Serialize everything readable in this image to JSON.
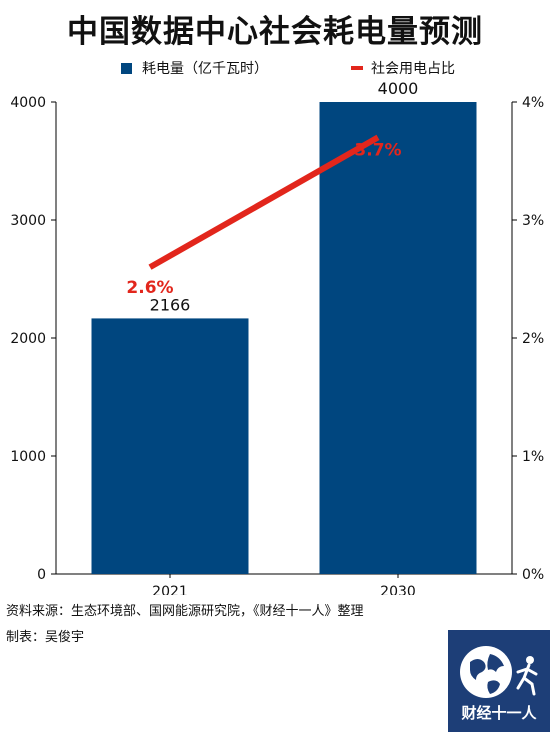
{
  "title": "中国数据中心社会耗电量预测",
  "source": "资料来源：生态环境部、国网能源研究院，《财经十一人》整理",
  "maker": "制表：吴俊宇",
  "logo_text": "财经十一人",
  "colors": {
    "bar": "#00467f",
    "line": "#e2261c",
    "line_label": "#e2261c"
  },
  "chart_data": {
    "type": "bar+line",
    "categories": [
      "2021",
      "2030"
    ],
    "series": [
      {
        "name": "耗电量（亿千瓦时）",
        "axis": "left",
        "kind": "bar",
        "values": [
          2166,
          4000
        ],
        "labels": [
          "2166",
          "4000"
        ]
      },
      {
        "name": "社会用电占比",
        "axis": "right",
        "kind": "line",
        "values": [
          2.6,
          3.7
        ],
        "labels": [
          "2.6%",
          "3.7%"
        ]
      }
    ],
    "y_left": {
      "ylim": [
        0,
        4000
      ],
      "ticks": [
        "0",
        "1000",
        "2000",
        "3000",
        "4000"
      ]
    },
    "y_right": {
      "ylim": [
        0,
        4
      ],
      "ticks": [
        "0%",
        "1%",
        "2%",
        "3%",
        "4%"
      ]
    },
    "legend_position": "top",
    "grid": false
  }
}
